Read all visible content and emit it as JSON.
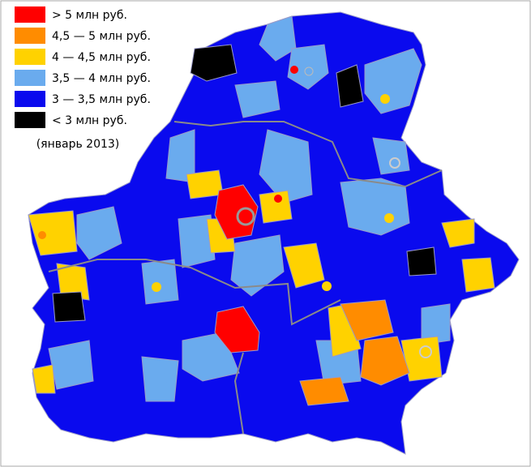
{
  "legend": {
    "items": [
      {
        "label": "> 5 млн руб.",
        "color": "#ff0000"
      },
      {
        "label": "4,5 — 5 млн руб.",
        "color": "#ff8c00"
      },
      {
        "label": "4 — 4,5 млн руб.",
        "color": "#ffd200"
      },
      {
        "label": "3,5 — 4 млн руб.",
        "color": "#6aabee"
      },
      {
        "label": "3 — 3,5 млн руб.",
        "color": "#0a0aee"
      },
      {
        "label": "< 3 млн руб.",
        "color": "#000000"
      }
    ],
    "note": "(январь 2013)"
  }
}
